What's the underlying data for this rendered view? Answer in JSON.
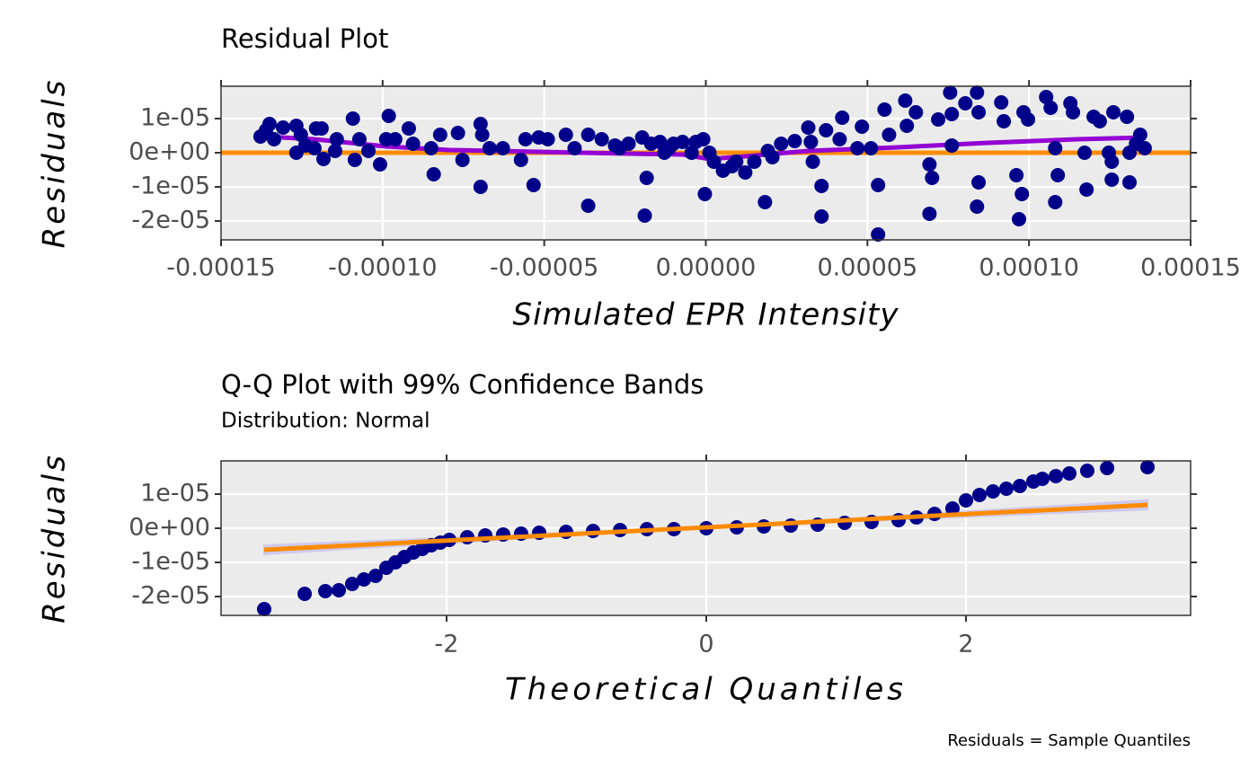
{
  "chart_data": [
    {
      "type": "scatter",
      "title": "Residual Plot",
      "x_label": "Simulated EPR Intensity",
      "y_label": "Residuals",
      "xlim": [
        -0.00015,
        0.00015
      ],
      "xticks": [
        {
          "value": -0.00015,
          "label": "-0.00015"
        },
        {
          "value": -0.0001,
          "label": "-0.00010"
        },
        {
          "value": -5e-05,
          "label": "-0.00005"
        },
        {
          "value": 0,
          "label": "0.00000"
        },
        {
          "value": 5e-05,
          "label": "0.00005"
        },
        {
          "value": 0.0001,
          "label": "0.00010"
        },
        {
          "value": 0.00015,
          "label": "0.00015"
        }
      ],
      "ylim": [
        -2.553e-05,
        1.947e-05
      ],
      "yticks": [
        {
          "value": 1e-05,
          "label": "1e-05"
        },
        {
          "value": 0,
          "label": "0e+00"
        },
        {
          "value": -1e-05,
          "label": "-1e-05"
        },
        {
          "value": -2e-05,
          "label": "-2e-05"
        }
      ],
      "grid": true,
      "series": [
        {
          "color": "#00008b",
          "x": [
            -0.0001361,
            -0.000135,
            -0.0001378,
            -0.0001336,
            -0.0001308,
            -0.0001267,
            -0.0001267,
            -0.0001253,
            -0.0001239,
            -0.0001206,
            -0.0001189,
            -0.0001183,
            -0.0001211,
            -0.0001142,
            -0.0001147,
            -0.0001092,
            -0.0001086,
            -0.0001072,
            -0.0001044,
            -0.0001008,
            -9.81e-05,
            -9.89e-05,
            -9.61e-05,
            -9.19e-05,
            -9.06e-05,
            -8.5e-05,
            -8.42e-05,
            -8.22e-05,
            -7.67e-05,
            -7.53e-05,
            -6.97e-05,
            -6.92e-05,
            -6.97e-05,
            -6.69e-05,
            -6.28e-05,
            -5.72e-05,
            -5.58e-05,
            -5.33e-05,
            -5.17e-05,
            -4.89e-05,
            -4.33e-05,
            -4.06e-05,
            -3.64e-05,
            -3.64e-05,
            -3.22e-05,
            -2.81e-05,
            -2.67e-05,
            -2.39e-05,
            -1.97e-05,
            -1.89e-05,
            -1.83e-05,
            -1.69e-05,
            -1.42e-05,
            -1.28e-05,
            -1.14e-05,
            -1e-05,
            -7.2e-06,
            -4.4e-06,
            -3.1e-06,
            -8e-07,
            -3e-07,
            1.1e-06,
            2.5e-06,
            5.3e-06,
            8.1e-06,
            9.4e-06,
            1.22e-05,
            1.5e-05,
            1.83e-05,
            1.92e-05,
            2.06e-05,
            2.33e-05,
            2.75e-05,
            3.17e-05,
            3.25e-05,
            3.31e-05,
            3.58e-05,
            3.58e-05,
            3.72e-05,
            4.14e-05,
            4.22e-05,
            4.69e-05,
            4.83e-05,
            5.11e-05,
            5.33e-05,
            5.33e-05,
            5.53e-05,
            5.67e-05,
            6.17e-05,
            6.22e-05,
            6.5e-05,
            6.92e-05,
            6.92e-05,
            7e-05,
            7.19e-05,
            7.56e-05,
            7.61e-05,
            7.61e-05,
            8.03e-05,
            8.39e-05,
            8.44e-05,
            8.39e-05,
            8.44e-05,
            9.14e-05,
            9.22e-05,
            9.61e-05,
            9.69e-05,
            9.78e-05,
            9.83e-05,
            9.97e-05,
            0.0001053,
            0.0001067,
            0.0001081,
            0.0001089,
            0.0001081,
            0.0001128,
            0.0001136,
            0.0001172,
            0.0001178,
            0.00012,
            0.0001219,
            0.0001247,
            0.0001256,
            0.0001256,
            0.0001261,
            0.0001303,
            0.0001311,
            0.0001311,
            0.0001331,
            0.0001344,
            0.0001358
          ],
          "values": [
            6.58e-06,
            8.42e-06,
            4.74e-06,
            3.95e-06,
            7.37e-06,
            7.89e-06,
            0,
            5.26e-06,
            2.11e-06,
            7.11e-06,
            7.11e-06,
            -1.84e-06,
            1.32e-06,
            3.95e-06,
            5.3e-07,
            1e-05,
            -2.11e-06,
            3.95e-06,
            5.3e-07,
            -3.42e-06,
            1.079e-05,
            3.95e-06,
            3.95e-06,
            7.11e-06,
            2.63e-06,
            1.32e-06,
            -6.32e-06,
            5.26e-06,
            5.79e-06,
            -2.11e-06,
            8.42e-06,
            5.26e-06,
            -1e-05,
            1.32e-06,
            1.32e-06,
            -2.11e-06,
            3.95e-06,
            -9.47e-06,
            4.47e-06,
            3.95e-06,
            5.26e-06,
            1.32e-06,
            -1.553e-05,
            5.26e-06,
            3.95e-06,
            2.11e-06,
            1.32e-06,
            2.63e-06,
            4.47e-06,
            -1.842e-05,
            -7.37e-06,
            2.63e-06,
            3.16e-06,
            0,
            1.32e-06,
            2.63e-06,
            3.16e-06,
            0,
            3.16e-06,
            3.95e-06,
            -1.211e-05,
            0,
            -2.63e-06,
            -5.26e-06,
            -3.95e-06,
            -2.63e-06,
            -5.79e-06,
            -2.63e-06,
            -1.447e-05,
            5.3e-07,
            -1.32e-06,
            2.63e-06,
            3.42e-06,
            7.37e-06,
            3.16e-06,
            -2.63e-06,
            -1.868e-05,
            -9.74e-06,
            6.58e-06,
            3.95e-06,
            1.026e-05,
            1.32e-06,
            7.63e-06,
            1.32e-06,
            -9.47e-06,
            -2.395e-05,
            1.263e-05,
            5.26e-06,
            1.526e-05,
            7.89e-06,
            1.184e-05,
            -3.42e-06,
            -1.789e-05,
            -7.37e-06,
            9.74e-06,
            1.763e-05,
            1.132e-05,
            2.11e-06,
            1.447e-05,
            1.763e-05,
            -8.68e-06,
            -1.579e-05,
            1.184e-05,
            1.474e-05,
            9.21e-06,
            -6.58e-06,
            -1.947e-05,
            -1.211e-05,
            1.184e-05,
            9.74e-06,
            1.632e-05,
            1.316e-05,
            1.32e-06,
            -6.58e-06,
            -1.447e-05,
            1.447e-05,
            1.184e-05,
            0,
            -1.079e-05,
            1.053e-05,
            9.21e-06,
            0,
            -2.63e-06,
            -7.89e-06,
            1.184e-05,
            1.053e-05,
            0,
            -8.68e-06,
            2.63e-06,
            5.26e-06,
            1.32e-06
          ]
        }
      ],
      "lines": [
        {
          "color": "#9400d3",
          "x": [
            -0.0001361,
            -0.0001211,
            -9.89e-05,
            -7.94e-05,
            -5.17e-05,
            -2.39e-05,
            -7.2e-06,
            1.1e-06,
            1.22e-05,
            3.17e-05,
            5.94e-05,
            8.72e-05,
            0.000115,
            0.0001358
          ],
          "values": [
            4.74e-06,
            3.95e-06,
            1.84e-06,
            7.9e-07,
            2.6e-07,
            -2.6e-07,
            -5.3e-07,
            -1.84e-06,
            -1.05e-06,
            5.3e-07,
            1.58e-06,
            2.89e-06,
            3.95e-06,
            4.47e-06
          ]
        }
      ],
      "hline": {
        "value": 0,
        "color": "#ff8c00"
      }
    },
    {
      "type": "scatter",
      "title": "Q-Q Plot with 99% Confidence Bands",
      "subtitle": "Distribution: Normal",
      "x_label": "Theoretical Quantiles",
      "y_label": "Residuals",
      "caption": "Residuals = Sample Quantiles",
      "xlim": [
        -3.737,
        3.73
      ],
      "xticks": [
        -2,
        0,
        2
      ],
      "ylim": [
        -2.553e-05,
        1.974e-05
      ],
      "yticks": [
        {
          "value": 1e-05,
          "label": "1e-05"
        },
        {
          "value": 0,
          "label": "0e+00"
        },
        {
          "value": -1e-05,
          "label": "-1e-05"
        },
        {
          "value": -2e-05,
          "label": "-2e-05"
        }
      ],
      "grid": true,
      "band": {
        "color": "#c8c3f0",
        "x": [
          -3.405,
          0,
          3.398
        ],
        "lower": [
          -7.6e-06,
          2.6e-07,
          5.5e-06
        ],
        "upper": [
          -5e-06,
          2.6e-07,
          8.2e-06
        ]
      },
      "lines": [
        {
          "color": "#ff8c00",
          "x": [
            -3.405,
            3.398
          ],
          "values": [
            -6.32e-06,
            6.84e-06
          ]
        }
      ],
      "series": [
        {
          "color": "#00008b",
          "x": [
            -3.405,
            -3.093,
            -2.934,
            -2.83,
            -2.727,
            -2.637,
            -2.547,
            -2.464,
            -2.394,
            -2.325,
            -2.256,
            -2.187,
            -2.118,
            -2.048,
            -1.979,
            -1.841,
            -1.702,
            -1.564,
            -1.426,
            -1.287,
            -1.08,
            -0.872,
            -0.664,
            -0.457,
            -0.249,
            0,
            0.235,
            0.443,
            0.651,
            0.858,
            1.066,
            1.273,
            1.481,
            1.619,
            1.758,
            1.896,
            2.0,
            2.104,
            2.208,
            2.311,
            2.415,
            2.519,
            2.588,
            2.692,
            2.796,
            2.934,
            3.087,
            3.398
          ],
          "values": [
            -2.368e-05,
            -1.921e-05,
            -1.842e-05,
            -1.816e-05,
            -1.632e-05,
            -1.5e-05,
            -1.395e-05,
            -1.158e-05,
            -1e-05,
            -8.42e-06,
            -7.11e-06,
            -6.05e-06,
            -5e-06,
            -4.21e-06,
            -3.42e-06,
            -2.63e-06,
            -2.11e-06,
            -1.84e-06,
            -1.58e-06,
            -1.32e-06,
            -1.05e-06,
            -7.9e-07,
            -5.3e-07,
            -2.6e-07,
            -2.6e-07,
            0,
            2.6e-07,
            5.3e-07,
            7.9e-07,
            1.05e-06,
            1.58e-06,
            1.84e-06,
            2.37e-06,
            3.16e-06,
            4.21e-06,
            5.79e-06,
            8.16e-06,
            9.74e-06,
            1.079e-05,
            1.158e-05,
            1.237e-05,
            1.368e-05,
            1.447e-05,
            1.526e-05,
            1.605e-05,
            1.684e-05,
            1.763e-05,
            1.789e-05
          ]
        }
      ]
    }
  ]
}
